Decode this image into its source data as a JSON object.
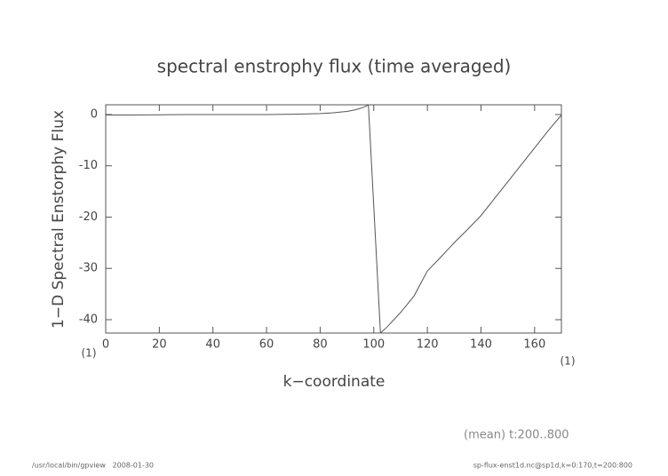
{
  "chart_data": {
    "type": "line",
    "title": "spectral enstrophy flux (time averaged)",
    "x_label": "k−coordinate",
    "y_label": "1−D Spectral Enstorphy Flux",
    "x_unit_left": "(1)",
    "x_unit_right": "(1)",
    "annotation": "(mean) t:200..800",
    "footer_left": "/usr/local/bin/gpview   2008-01-30",
    "footer_right": "sp-flux-enst1d.nc@sp1d,k=0:170,t=200:800",
    "color": "#555555",
    "x": [
      0,
      10,
      20,
      30,
      40,
      50,
      60,
      70,
      80,
      85,
      90,
      93,
      95,
      97,
      98,
      102.5,
      105,
      110,
      115,
      120,
      125,
      130,
      135,
      140,
      145,
      150,
      155,
      160,
      165,
      170
    ],
    "values": [
      -0.1,
      -0.1,
      -0.05,
      0,
      0,
      0,
      0,
      0.05,
      0.2,
      0.35,
      0.6,
      0.9,
      1.2,
      1.6,
      1.9,
      -42.6,
      -41.4,
      -38.6,
      -35.4,
      -30.5,
      -27.8,
      -25,
      -22.4,
      -19.7,
      -16.4,
      -13.1,
      -9.8,
      -6.5,
      -3.2,
      -0.1
    ],
    "xlim": [
      0,
      170
    ],
    "ylim": [
      -42.6,
      1.9
    ],
    "xticks": [
      0,
      20,
      40,
      60,
      80,
      100,
      120,
      140,
      160
    ],
    "yticks": [
      0,
      -10,
      -20,
      -30,
      -40
    ]
  }
}
